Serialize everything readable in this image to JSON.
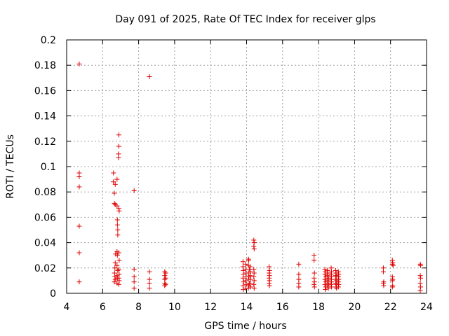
{
  "chart_data": {
    "type": "scatter",
    "title": "Day 091 of 2025, Rate Of TEC Index for receiver glps",
    "xlabel": "GPS time / hours",
    "ylabel": "ROTI / TECUs",
    "xlim": [
      4,
      24
    ],
    "ylim": [
      0,
      0.2
    ],
    "xticks": [
      4,
      6,
      8,
      10,
      12,
      14,
      16,
      18,
      20,
      22,
      24
    ],
    "yticks": [
      0,
      0.02,
      0.04,
      0.06,
      0.08,
      0.1,
      0.12,
      0.14,
      0.16,
      0.18,
      0.2
    ],
    "xtick_labels": [
      "4",
      "6",
      "8",
      "10",
      "12",
      "14",
      "16",
      "18",
      "20",
      "22",
      "24"
    ],
    "ytick_labels": [
      "0",
      "0.02",
      "0.04",
      "0.06",
      "0.08",
      "0.1",
      "0.12",
      "0.14",
      "0.16",
      "0.18",
      "0.2"
    ],
    "grid": true,
    "marker": "+",
    "color": "#e00000",
    "series": [
      {
        "name": "ROTI",
        "points": [
          [
            4.7,
            0.181
          ],
          [
            4.7,
            0.095
          ],
          [
            4.7,
            0.092
          ],
          [
            4.7,
            0.084
          ],
          [
            4.7,
            0.053
          ],
          [
            4.7,
            0.032
          ],
          [
            4.7,
            0.009
          ],
          [
            6.6,
            0.095
          ],
          [
            6.6,
            0.088
          ],
          [
            6.65,
            0.079
          ],
          [
            6.65,
            0.071
          ],
          [
            6.7,
            0.086
          ],
          [
            6.7,
            0.07
          ],
          [
            6.72,
            0.031
          ],
          [
            6.7,
            0.024
          ],
          [
            6.68,
            0.02
          ],
          [
            6.66,
            0.016
          ],
          [
            6.68,
            0.013
          ],
          [
            6.7,
            0.011
          ],
          [
            6.65,
            0.009
          ],
          [
            6.8,
            0.09
          ],
          [
            6.8,
            0.069
          ],
          [
            6.82,
            0.058
          ],
          [
            6.82,
            0.054
          ],
          [
            6.84,
            0.05
          ],
          [
            6.84,
            0.046
          ],
          [
            6.8,
            0.033
          ],
          [
            6.82,
            0.03
          ],
          [
            6.8,
            0.022
          ],
          [
            6.84,
            0.018
          ],
          [
            6.8,
            0.014
          ],
          [
            6.82,
            0.012
          ],
          [
            6.8,
            0.008
          ],
          [
            6.9,
            0.125
          ],
          [
            6.9,
            0.116
          ],
          [
            6.88,
            0.11
          ],
          [
            6.88,
            0.107
          ],
          [
            6.9,
            0.067
          ],
          [
            6.92,
            0.065
          ],
          [
            6.9,
            0.032
          ],
          [
            6.92,
            0.026
          ],
          [
            6.9,
            0.019
          ],
          [
            6.92,
            0.015
          ],
          [
            6.9,
            0.012
          ],
          [
            6.92,
            0.01
          ],
          [
            6.9,
            0.007
          ],
          [
            7.75,
            0.081
          ],
          [
            7.75,
            0.019
          ],
          [
            7.75,
            0.013
          ],
          [
            7.75,
            0.009
          ],
          [
            7.75,
            0.004
          ],
          [
            8.6,
            0.171
          ],
          [
            8.6,
            0.017
          ],
          [
            8.6,
            0.011
          ],
          [
            8.6,
            0.008
          ],
          [
            8.6,
            0.004
          ],
          [
            9.45,
            0.017
          ],
          [
            9.45,
            0.014
          ],
          [
            9.45,
            0.011
          ],
          [
            9.45,
            0.008
          ],
          [
            9.45,
            0.006
          ],
          [
            9.5,
            0.016
          ],
          [
            9.5,
            0.012
          ],
          [
            9.5,
            0.007
          ],
          [
            13.8,
            0.025
          ],
          [
            13.8,
            0.021
          ],
          [
            13.82,
            0.018
          ],
          [
            13.82,
            0.015
          ],
          [
            13.8,
            0.012
          ],
          [
            13.84,
            0.009
          ],
          [
            13.8,
            0.006
          ],
          [
            13.82,
            0.003
          ],
          [
            13.95,
            0.023
          ],
          [
            13.95,
            0.019
          ],
          [
            13.97,
            0.016
          ],
          [
            13.97,
            0.013
          ],
          [
            13.95,
            0.01
          ],
          [
            13.98,
            0.007
          ],
          [
            13.95,
            0.004
          ],
          [
            14.1,
            0.027
          ],
          [
            14.12,
            0.026
          ],
          [
            14.1,
            0.022
          ],
          [
            14.15,
            0.019
          ],
          [
            14.1,
            0.016
          ],
          [
            14.13,
            0.013
          ],
          [
            14.1,
            0.011
          ],
          [
            14.15,
            0.008
          ],
          [
            14.12,
            0.006
          ],
          [
            14.1,
            0.004
          ],
          [
            14.2,
            0.021
          ],
          [
            14.22,
            0.017
          ],
          [
            14.2,
            0.014
          ],
          [
            14.22,
            0.011
          ],
          [
            14.2,
            0.008
          ],
          [
            14.22,
            0.005
          ],
          [
            14.4,
            0.042
          ],
          [
            14.42,
            0.04
          ],
          [
            14.4,
            0.037
          ],
          [
            14.42,
            0.035
          ],
          [
            14.4,
            0.019
          ],
          [
            14.42,
            0.016
          ],
          [
            14.4,
            0.013
          ],
          [
            14.42,
            0.01
          ],
          [
            14.4,
            0.007
          ],
          [
            14.42,
            0.004
          ],
          [
            15.25,
            0.021
          ],
          [
            15.27,
            0.018
          ],
          [
            15.25,
            0.016
          ],
          [
            15.27,
            0.014
          ],
          [
            15.25,
            0.012
          ],
          [
            15.27,
            0.01
          ],
          [
            15.25,
            0.008
          ],
          [
            15.27,
            0.006
          ],
          [
            16.9,
            0.023
          ],
          [
            16.9,
            0.015
          ],
          [
            16.9,
            0.011
          ],
          [
            16.9,
            0.008
          ],
          [
            16.9,
            0.005
          ],
          [
            17.75,
            0.03
          ],
          [
            17.75,
            0.026
          ],
          [
            17.77,
            0.016
          ],
          [
            17.75,
            0.012
          ],
          [
            17.77,
            0.009
          ],
          [
            17.75,
            0.007
          ],
          [
            17.77,
            0.005
          ],
          [
            18.35,
            0.019
          ],
          [
            18.37,
            0.017
          ],
          [
            18.35,
            0.015
          ],
          [
            18.4,
            0.013
          ],
          [
            18.35,
            0.011
          ],
          [
            18.4,
            0.009
          ],
          [
            18.35,
            0.007
          ],
          [
            18.4,
            0.005
          ],
          [
            18.37,
            0.003
          ],
          [
            18.5,
            0.018
          ],
          [
            18.52,
            0.016
          ],
          [
            18.5,
            0.014
          ],
          [
            18.55,
            0.012
          ],
          [
            18.5,
            0.01
          ],
          [
            18.55,
            0.008
          ],
          [
            18.5,
            0.006
          ],
          [
            18.55,
            0.004
          ],
          [
            18.7,
            0.02
          ],
          [
            18.72,
            0.017
          ],
          [
            18.7,
            0.015
          ],
          [
            18.72,
            0.013
          ],
          [
            18.7,
            0.011
          ],
          [
            18.72,
            0.009
          ],
          [
            18.7,
            0.007
          ],
          [
            18.72,
            0.005
          ],
          [
            18.95,
            0.018
          ],
          [
            18.97,
            0.016
          ],
          [
            18.95,
            0.014
          ],
          [
            19.0,
            0.013
          ],
          [
            18.95,
            0.011
          ],
          [
            19.0,
            0.01
          ],
          [
            18.95,
            0.008
          ],
          [
            19.0,
            0.007
          ],
          [
            18.97,
            0.005
          ],
          [
            19.0,
            0.004
          ],
          [
            19.1,
            0.017
          ],
          [
            19.12,
            0.015
          ],
          [
            19.1,
            0.013
          ],
          [
            19.12,
            0.011
          ],
          [
            19.1,
            0.009
          ],
          [
            19.12,
            0.007
          ],
          [
            19.1,
            0.005
          ],
          [
            21.6,
            0.02
          ],
          [
            21.6,
            0.017
          ],
          [
            21.62,
            0.009
          ],
          [
            21.6,
            0.008
          ],
          [
            21.62,
            0.006
          ],
          [
            22.1,
            0.026
          ],
          [
            22.12,
            0.024
          ],
          [
            22.1,
            0.023
          ],
          [
            22.14,
            0.022
          ],
          [
            22.1,
            0.013
          ],
          [
            22.12,
            0.011
          ],
          [
            22.1,
            0.01
          ],
          [
            22.12,
            0.006
          ],
          [
            22.1,
            0.005
          ],
          [
            23.65,
            0.023
          ],
          [
            23.67,
            0.022
          ],
          [
            23.65,
            0.014
          ],
          [
            23.67,
            0.012
          ],
          [
            23.65,
            0.008
          ],
          [
            23.67,
            0.005
          ],
          [
            23.65,
            0.002
          ]
        ]
      }
    ]
  }
}
